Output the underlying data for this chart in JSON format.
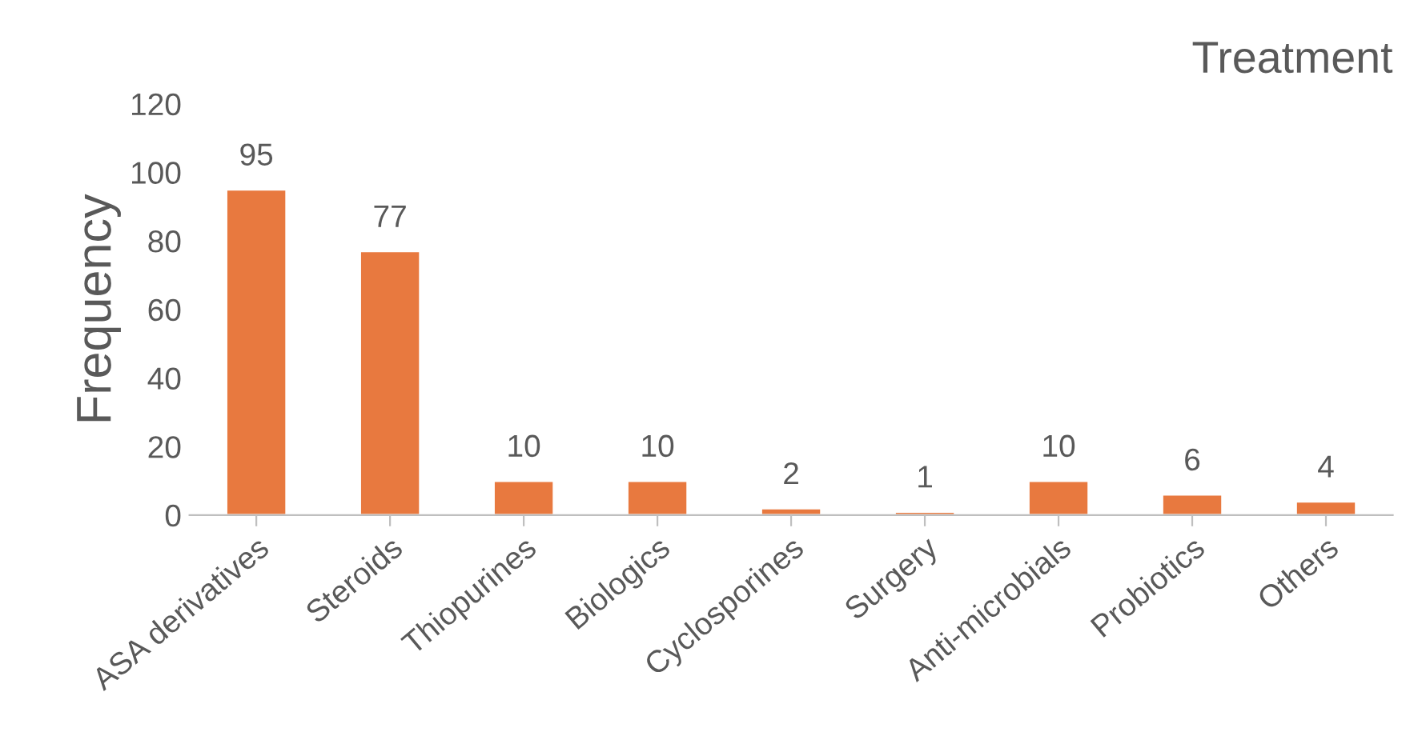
{
  "chart_data": {
    "type": "bar",
    "title": "Treatment",
    "ylabel": "Frequency",
    "categories": [
      "ASA derivatives",
      "Steroids",
      "Thiopurines",
      "Biologics",
      "Cyclosporines",
      "Surgery",
      "Anti-microbials",
      "Probiotics",
      "Others"
    ],
    "values": [
      95,
      77,
      10,
      10,
      2,
      1,
      10,
      6,
      4
    ],
    "color": "#e8793f",
    "ylim": [
      0,
      120
    ],
    "yticks": [
      0,
      20,
      40,
      60,
      80,
      100,
      120
    ],
    "data_labels": true,
    "grid": false,
    "legend": false
  }
}
